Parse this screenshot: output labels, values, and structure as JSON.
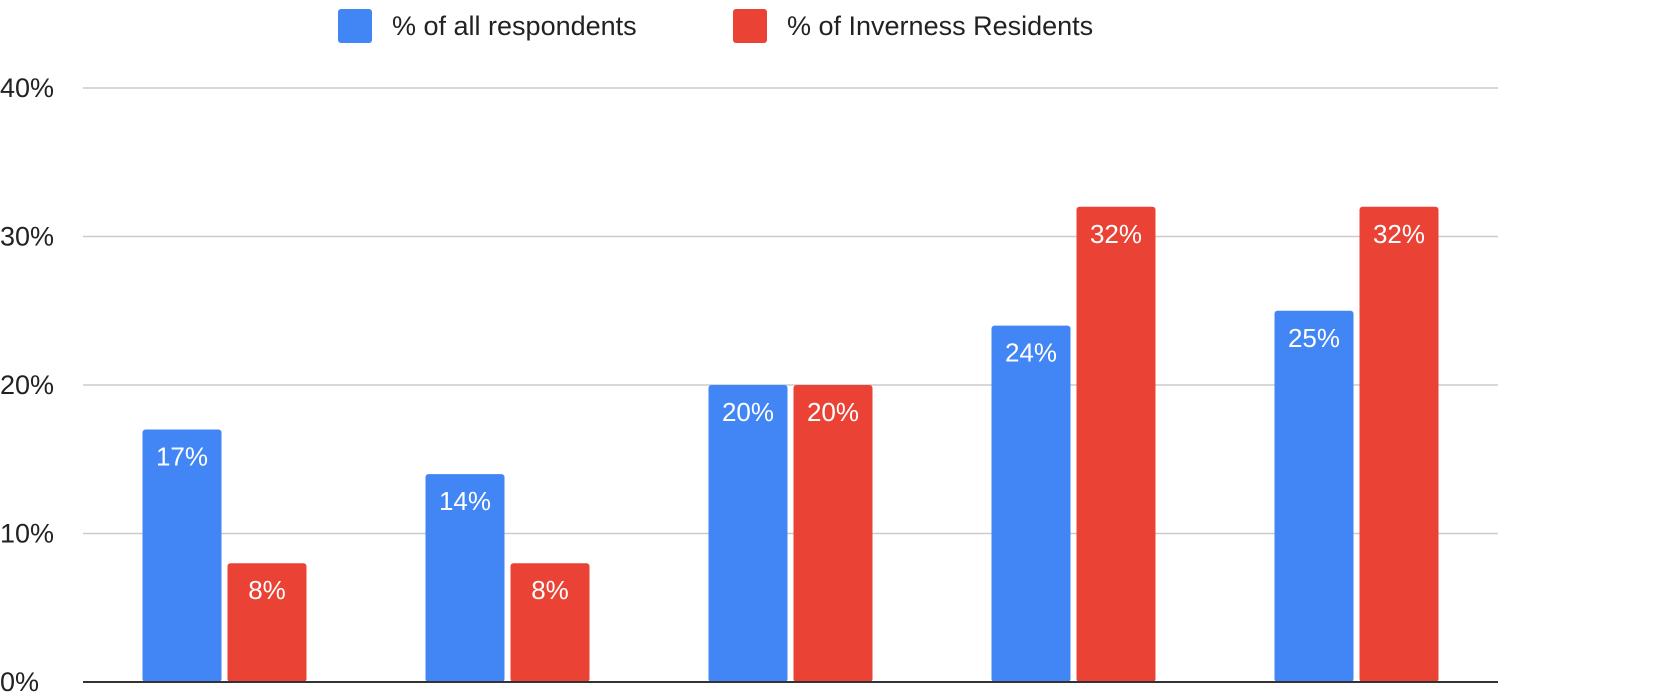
{
  "chart_data": {
    "type": "bar",
    "categories": [
      "",
      "",
      "",
      "",
      ""
    ],
    "series": [
      {
        "name": "% of all respondents",
        "color": "#4285f4",
        "values": [
          17,
          14,
          20,
          24,
          25
        ],
        "labels": [
          "17%",
          "14%",
          "20%",
          "24%",
          "25%"
        ]
      },
      {
        "name": "% of Inverness Residents",
        "color": "#ea4335",
        "values": [
          8,
          8,
          20,
          32,
          32
        ],
        "labels": [
          "8%",
          "8%",
          "20%",
          "32%",
          "32%"
        ]
      }
    ],
    "title": "",
    "xlabel": "",
    "ylabel": "",
    "ylim": [
      0,
      40
    ],
    "yticks": [
      0,
      10,
      20,
      30,
      40
    ],
    "ytick_labels": [
      "0%",
      "10%",
      "20%",
      "30%",
      "40%"
    ],
    "grid": true,
    "legend_position": "top-center",
    "gridline_color": "#cccccc",
    "axis_color": "#333333"
  }
}
